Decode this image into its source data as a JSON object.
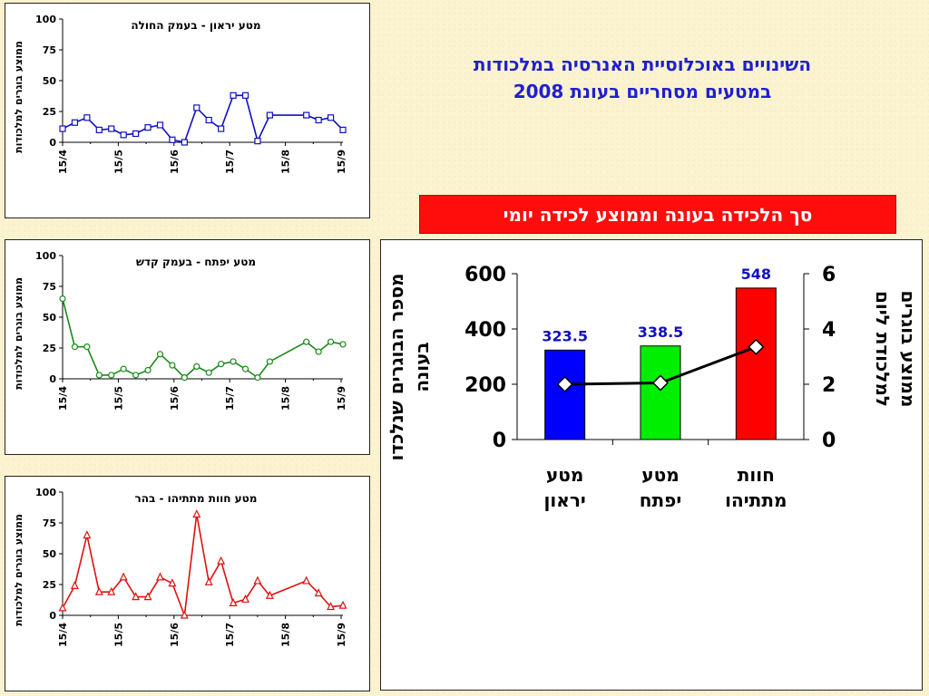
{
  "page": {
    "title_line1": "השינויים באוכלוסיית האנרסיה במלכודות",
    "title_line2": "במטעים מסחריים בעונת  2008",
    "banner": "סך הלכידה בעונה וממוצע לכידה יומי"
  },
  "chart_data": [
    {
      "type": "line",
      "title": "מטע יראון - בעמק החולה",
      "ylabel": "ממוצע בוגרים למלכודות",
      "ylim": [
        0,
        100
      ],
      "yticks": [
        "100",
        "75",
        "50",
        "25",
        "0"
      ],
      "xticks": [
        "15/4",
        "15/5",
        "15/6",
        "15/7",
        "15/8",
        "15/9"
      ],
      "color": "#1010c0",
      "marker": "square",
      "series": [
        {
          "x": [
            0,
            7,
            14,
            21,
            28,
            35,
            42,
            49,
            56,
            63,
            70,
            77,
            84,
            91,
            98,
            105,
            112,
            119,
            140,
            147,
            154,
            161
          ],
          "values": [
            11,
            16,
            20,
            10,
            11,
            6,
            7,
            12,
            14,
            2,
            0,
            28,
            18,
            11,
            38,
            38,
            1,
            22,
            22,
            18,
            20,
            10
          ]
        }
      ]
    },
    {
      "type": "line",
      "title": "מטע יפתח - בעמק קדש",
      "ylabel": "ממוצע בוגרים למלכודות",
      "ylim": [
        0,
        100
      ],
      "yticks": [
        "100",
        "75",
        "50",
        "25",
        "0"
      ],
      "xticks": [
        "15/4",
        "15/5",
        "15/6",
        "15/7",
        "15/8",
        "15/9"
      ],
      "color": "#1a8a1a",
      "marker": "circle",
      "series": [
        {
          "x": [
            0,
            7,
            14,
            21,
            28,
            35,
            42,
            49,
            56,
            63,
            70,
            77,
            84,
            91,
            98,
            105,
            112,
            119,
            140,
            147,
            154,
            161
          ],
          "values": [
            65,
            26,
            26,
            3,
            3,
            8,
            3,
            7,
            20,
            11,
            1,
            10,
            5,
            12,
            14,
            8,
            1,
            14,
            30,
            22,
            30,
            28
          ]
        }
      ]
    },
    {
      "type": "line",
      "title": "מטע חוות מתתיהו - בהר",
      "ylabel": "ממוצע בוגרים למלכודות",
      "ylim": [
        0,
        100
      ],
      "yticks": [
        "100",
        "75",
        "50",
        "25",
        "0"
      ],
      "xticks": [
        "15/4",
        "15/5",
        "15/6",
        "15/7",
        "15/8",
        "15/9"
      ],
      "color": "#e01010",
      "marker": "triangle",
      "series": [
        {
          "x": [
            0,
            7,
            14,
            21,
            28,
            35,
            42,
            49,
            56,
            63,
            70,
            77,
            84,
            91,
            98,
            105,
            112,
            119,
            140,
            147,
            154,
            161
          ],
          "values": [
            6,
            24,
            65,
            19,
            19,
            31,
            15,
            15,
            31,
            26,
            0,
            82,
            27,
            44,
            10,
            13,
            28,
            16,
            28,
            18,
            7,
            8
          ]
        }
      ]
    },
    {
      "type": "bar",
      "categories": [
        "מטע\nיראון",
        "מטע\nיפתח",
        "חוות\nמתתיהו"
      ],
      "ylabel": "מספר הבוגרים שנלכדו\nבעונה",
      "y2label": "ממוצע בוגרים\nלמלכודת ליום",
      "ylim": [
        0,
        600
      ],
      "yticks": [
        "0",
        "200",
        "400",
        "600"
      ],
      "y2lim": [
        0,
        6
      ],
      "y2ticks": [
        "0",
        "2",
        "4",
        "6"
      ],
      "series": [
        {
          "type": "bar",
          "values": [
            323.5,
            338.5,
            548
          ],
          "labels": [
            "323.5",
            "338.5",
            "548"
          ],
          "colors": [
            "#0000ff",
            "#00ee00",
            "#ff0000"
          ]
        },
        {
          "type": "line",
          "axis": "secondary",
          "values": [
            2.0,
            2.05,
            3.35
          ],
          "color": "#000000",
          "marker": "diamond"
        }
      ]
    }
  ]
}
